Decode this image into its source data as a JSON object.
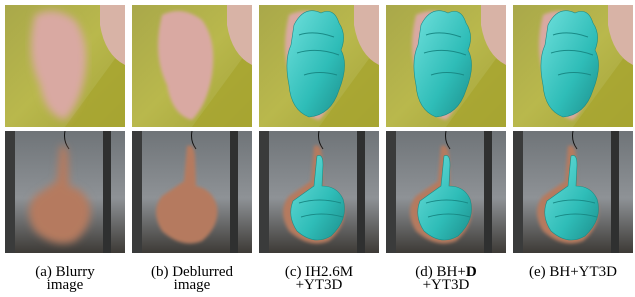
{
  "panels": [
    {
      "caption_lines": [
        [
          "(a) Blurry"
        ],
        [
          "image"
        ]
      ]
    },
    {
      "caption_lines": [
        [
          "(b) Deblurred"
        ],
        [
          "image"
        ]
      ]
    },
    {
      "caption_lines": [
        [
          "(c) IH2.6M"
        ],
        [
          "+YT3D"
        ]
      ]
    },
    {
      "caption_lines": [
        [
          "(d) BH+",
          "D"
        ],
        [
          "+YT3D"
        ]
      ]
    },
    {
      "caption_lines": [
        [
          "(e) BH+YT3D"
        ]
      ]
    }
  ]
}
